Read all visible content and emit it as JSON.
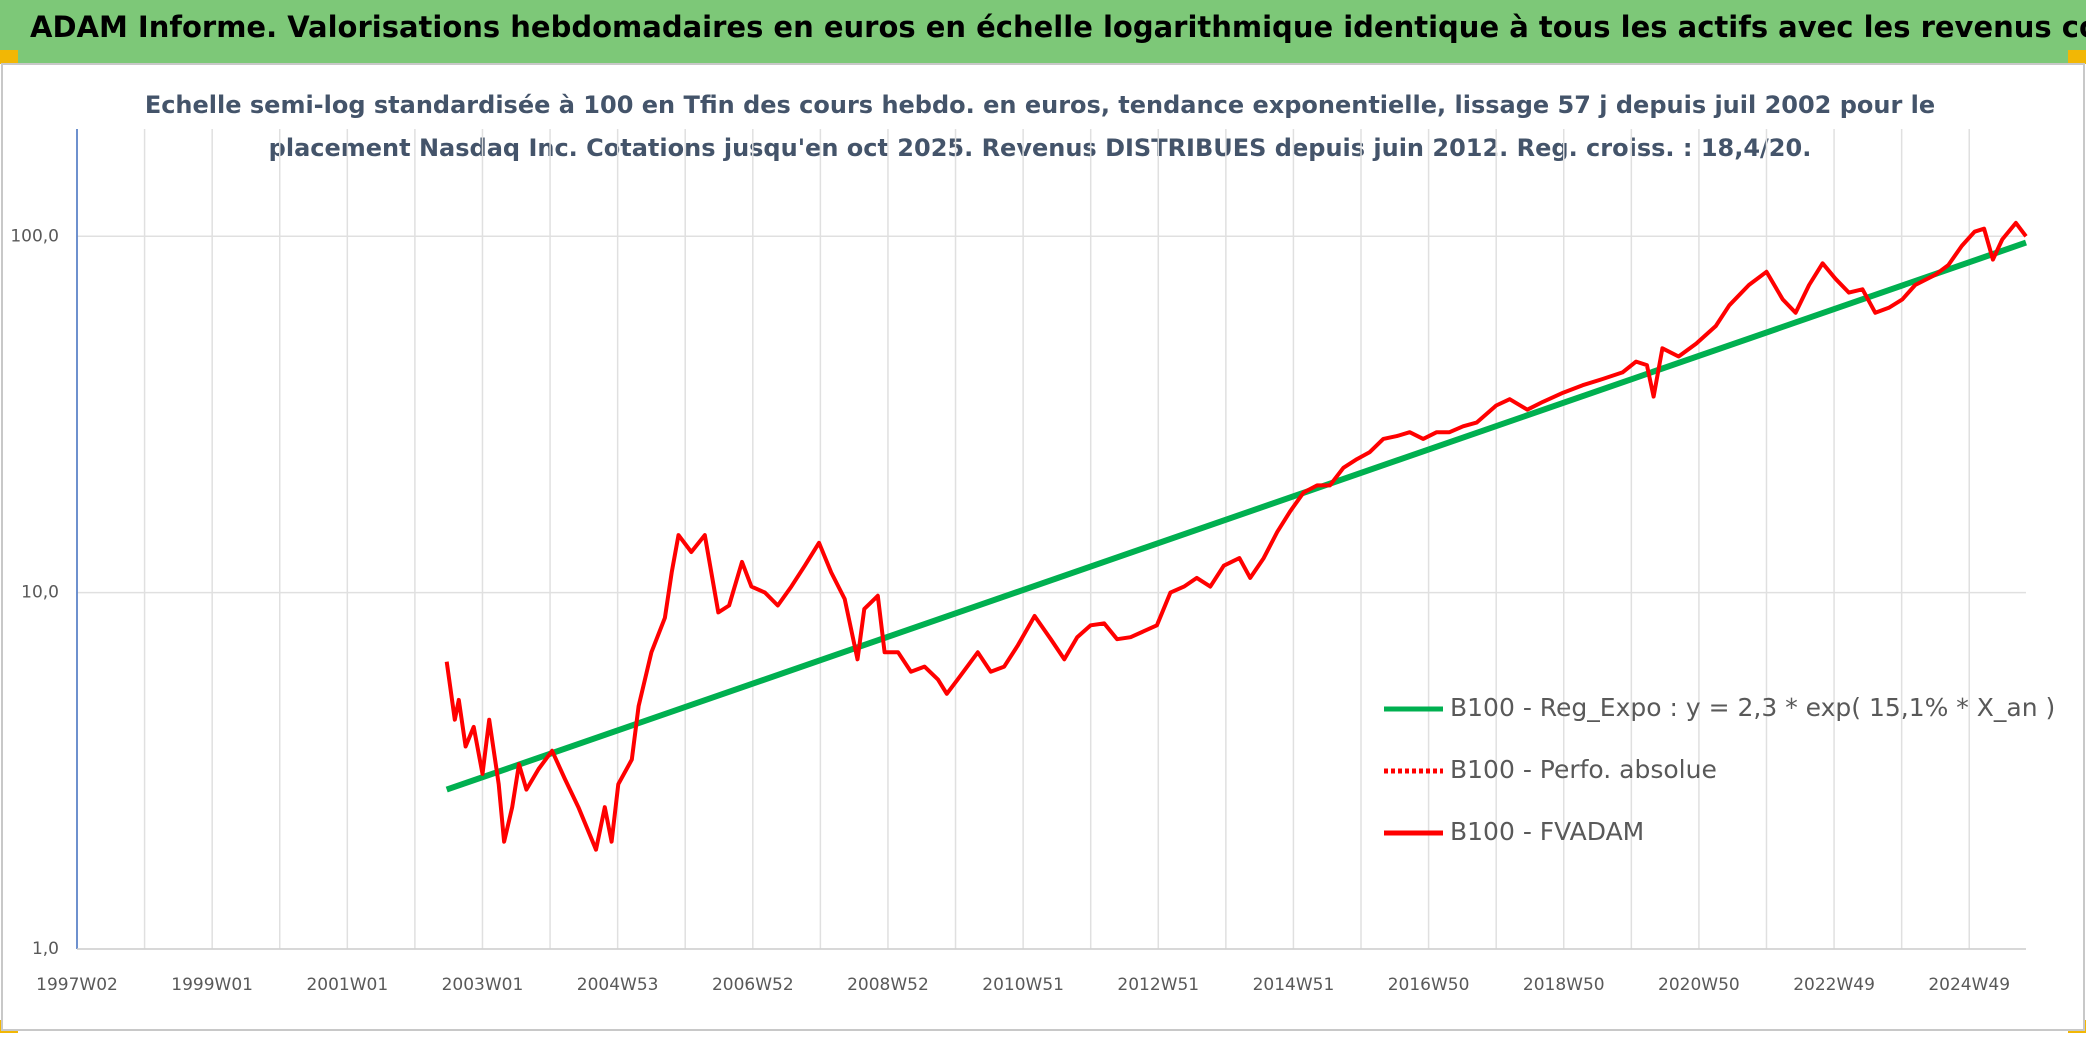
{
  "chart_data": {
    "type": "line",
    "title": "ADAM Informe. Valorisations hebdomadaires en euros en échelle logarithmique identique à tous les actifs avec les revenus connus distribués",
    "subtitle": [
      "Echelle semi-log standardisée à 100 en Tfin des cours hebdo. en euros, tendance exponentielle, lissage 57 j depuis juil 2002 pour le",
      "placement Nasdaq Inc. Cotations jusqu'en oct 2025. Revenus DISTRIBUES depuis juin 2012. Reg. croiss. : 18,4/20."
    ],
    "xlim": [
      1997,
      2025.84
    ],
    "xticks": [
      {
        "value": 1997,
        "label": "1997W02"
      },
      {
        "value": 1999,
        "label": "1999W01"
      },
      {
        "value": 2001,
        "label": "2001W01"
      },
      {
        "value": 2003,
        "label": "2003W01"
      },
      {
        "value": 2005,
        "label": "2004W53"
      },
      {
        "value": 2007,
        "label": "2006W52"
      },
      {
        "value": 2009,
        "label": "2008W52"
      },
      {
        "value": 2011,
        "label": "2010W51"
      },
      {
        "value": 2013,
        "label": "2012W51"
      },
      {
        "value": 2015,
        "label": "2014W51"
      },
      {
        "value": 2017,
        "label": "2016W50"
      },
      {
        "value": 2019,
        "label": "2018W50"
      },
      {
        "value": 2021,
        "label": "2020W50"
      },
      {
        "value": 2023,
        "label": "2022W49"
      },
      {
        "value": 2025,
        "label": "2024W49"
      }
    ],
    "xminorticks": [
      1998,
      2000,
      2002,
      2004,
      2006,
      2008,
      2010,
      2012,
      2014,
      2016,
      2018,
      2020,
      2022,
      2024
    ],
    "ylim": [
      1,
      200
    ],
    "yscale": "log",
    "yticks": [
      {
        "value": 1,
        "label": "1,0"
      },
      {
        "value": 10,
        "label": "10,0"
      },
      {
        "value": 100,
        "label": "100,0"
      }
    ],
    "grid": true,
    "legend": "lower right",
    "series": [
      {
        "name": "B100 - Reg_Expo : y = 2,3 * exp( 15,1% *  X_an )",
        "color": "#00b050",
        "style": "solid",
        "x": [
          2002.47,
          2025.84
        ],
        "values": [
          2.8,
          96
        ]
      },
      {
        "name": "B100 - Perfo. absolue",
        "color": "#ff0000",
        "style": "dotted"
      },
      {
        "name": "B100 - FVADAM",
        "color": "#ff0000",
        "style": "solid",
        "x": [
          2002.47,
          2002.59,
          2002.65,
          2002.75,
          2002.87,
          2003.0,
          2003.1,
          2003.24,
          2003.32,
          2003.44,
          2003.54,
          2003.65,
          2003.83,
          2004.03,
          2004.22,
          2004.42,
          2004.68,
          2004.81,
          2004.91,
          2005.01,
          2005.21,
          2005.31,
          2005.5,
          2005.7,
          2005.8,
          2005.9,
          2006.09,
          2006.29,
          2006.49,
          2006.65,
          2006.84,
          2006.98,
          2007.18,
          2007.37,
          2007.57,
          2007.77,
          2007.98,
          2008.16,
          2008.36,
          2008.55,
          2008.65,
          2008.85,
          2008.95,
          2009.15,
          2009.34,
          2009.54,
          2009.74,
          2009.87,
          2010.03,
          2010.33,
          2010.52,
          2010.72,
          2010.92,
          2011.17,
          2011.41,
          2011.61,
          2011.8,
          2012.0,
          2012.2,
          2012.39,
          2012.59,
          2012.79,
          2012.98,
          2013.18,
          2013.38,
          2013.57,
          2013.77,
          2013.97,
          2014.2,
          2014.36,
          2014.56,
          2014.76,
          2014.95,
          2015.15,
          2015.35,
          2015.54,
          2015.74,
          2015.94,
          2016.13,
          2016.33,
          2016.53,
          2016.72,
          2016.92,
          2017.12,
          2017.31,
          2017.51,
          2017.71,
          2018.0,
          2018.2,
          2018.46,
          2018.69,
          2018.99,
          2019.28,
          2019.58,
          2019.87,
          2020.07,
          2020.23,
          2020.33,
          2020.46,
          2020.7,
          2020.96,
          2021.25,
          2021.45,
          2021.74,
          2022.0,
          2022.24,
          2022.43,
          2022.63,
          2022.83,
          2023.02,
          2023.22,
          2023.42,
          2023.61,
          2023.81,
          2024.01,
          2024.2,
          2024.5,
          2024.69,
          2024.89,
          2025.08,
          2025.22,
          2025.35,
          2025.49,
          2025.69,
          2025.84
        ],
        "values": [
          6.4,
          4.4,
          5.0,
          3.7,
          4.2,
          3.1,
          4.4,
          2.9,
          2.0,
          2.5,
          3.3,
          2.8,
          3.2,
          3.6,
          3.0,
          2.5,
          1.9,
          2.5,
          2.0,
          2.9,
          3.4,
          4.8,
          6.8,
          8.5,
          11.4,
          14.5,
          13,
          14.5,
          8.8,
          9.2,
          12.2,
          10.4,
          10,
          9.2,
          10.4,
          11.9,
          13.8,
          11.4,
          9.6,
          6.5,
          9.0,
          9.8,
          6.8,
          6.8,
          6.0,
          6.2,
          5.7,
          5.2,
          5.7,
          6.8,
          6.0,
          6.2,
          7.1,
          8.6,
          7.4,
          6.5,
          7.5,
          8.1,
          8.2,
          7.4,
          7.5,
          7.8,
          8.1,
          10,
          10.4,
          11,
          10.4,
          11.9,
          12.5,
          11,
          12.5,
          14.8,
          16.9,
          19.1,
          20,
          20,
          22.4,
          23.7,
          24.8,
          27,
          27.5,
          28.2,
          27,
          28.2,
          28.2,
          29.3,
          30,
          33.5,
          34.9,
          32.6,
          34.3,
          36.4,
          38.2,
          39.8,
          41.5,
          44.5,
          43.5,
          35.5,
          48.5,
          46,
          50,
          56,
          64,
          73,
          79.5,
          66.5,
          61,
          73,
          84,
          76,
          69.5,
          71,
          61,
          63,
          66.5,
          73,
          78,
          83,
          94,
          103,
          105,
          86,
          98,
          109,
          100
        ]
      }
    ]
  }
}
